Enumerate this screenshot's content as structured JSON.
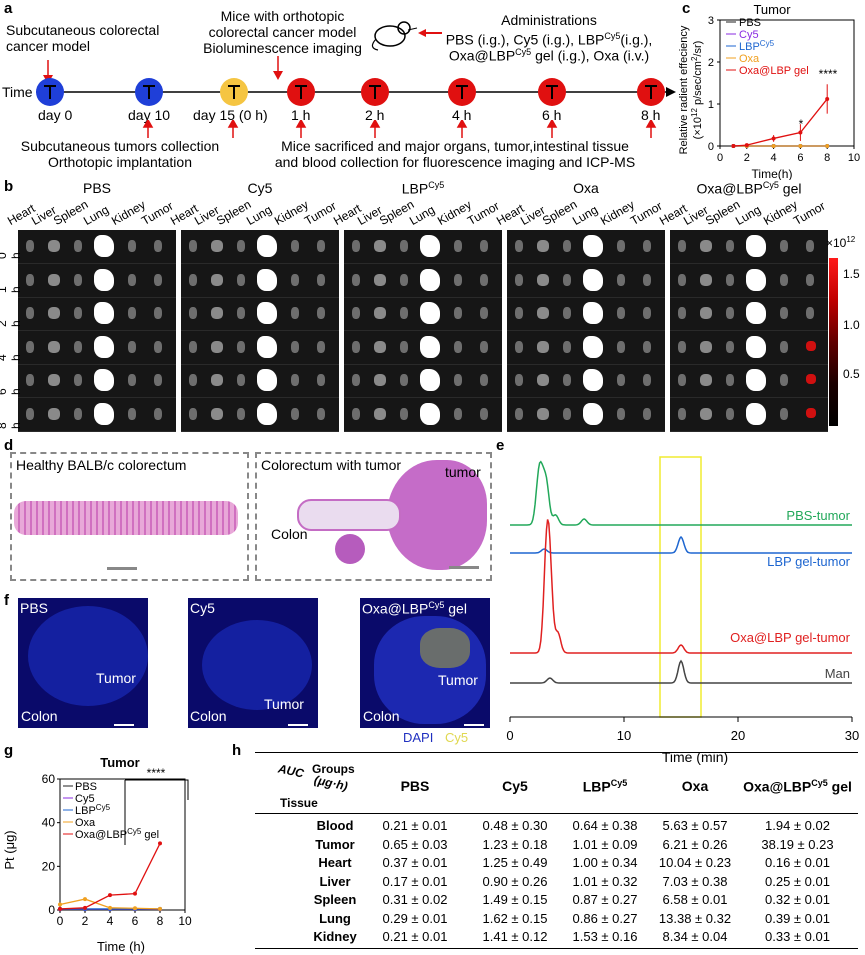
{
  "panel_a": {
    "label": "a",
    "subcutaneous_model": "Subcutaneous colorectal\ncancer model",
    "orthotopic_header": "Mice with orthotopic\ncolorectal cancer model\nBioluminescence imaging",
    "administrations_title": "Administrations",
    "administrations_line1": "PBS (i.g.), Cy5 (i.g.), LBP",
    "administrations_line1_sup": "Cy5",
    "administrations_line1_end": "(i.g.),",
    "administrations_line2": "Oxa@LBP",
    "administrations_line2_sup": "Cy5",
    "administrations_line2_end": " gel (i.g.), Oxa (i.v.)",
    "time_label": "Time",
    "timepoints": [
      "day 0",
      "day 10",
      "day 15 (0 h)",
      "1 h",
      "2 h",
      "4 h",
      "6 h",
      "8 h"
    ],
    "dot_colors": [
      "#1f3fd8",
      "#1f3fd8",
      "#f5c542",
      "#e01010",
      "#e01010",
      "#e01010",
      "#e01010",
      "#e01010"
    ],
    "collection_note": "Subcutaneous tumors collection\nOrthotopic implantation",
    "sacrifice_note": "Mice sacrificed and major organs, tumor,intestinal tissue\nand blood collection for fluorescence imaging and ICP-MS"
  },
  "panel_c": {
    "label": "c",
    "chart_data": {
      "type": "line",
      "title": "Tumor",
      "xlabel": "Time(h)",
      "ylabel": "Relative radient effeciency",
      "ylabel_unit": "(×10",
      "ylabel_unit_sup": "12",
      "ylabel_unit_end": " p/sec/cm",
      "ylabel_unit_end_sup": "2",
      "ylabel_unit_tail": "/sr)",
      "xlim": [
        0,
        10
      ],
      "ylim": [
        0,
        3
      ],
      "xticks": [
        "0",
        "2",
        "4",
        "6",
        "8",
        "10"
      ],
      "yticks": [
        "0",
        "1",
        "2",
        "3"
      ],
      "x": [
        1,
        2,
        4,
        6,
        8
      ],
      "series": [
        {
          "name": "PBS",
          "color": "#222222",
          "values": [
            0.0,
            0.0,
            0.0,
            0.0,
            0.0
          ]
        },
        {
          "name": "Cy5",
          "color": "#8a2be2",
          "values": [
            0.0,
            0.0,
            0.0,
            0.0,
            0.0
          ]
        },
        {
          "name": "LBP",
          "sup": "Cy5",
          "color": "#1e66d0",
          "values": [
            0.0,
            0.0,
            0.0,
            0.0,
            0.0
          ]
        },
        {
          "name": "Oxa",
          "color": "#f0a020",
          "values": [
            0.0,
            0.0,
            0.0,
            0.0,
            0.0
          ]
        },
        {
          "name": "Oxa@LBP gel",
          "color": "#e01010",
          "values": [
            0.0,
            0.02,
            0.18,
            0.32,
            1.12
          ],
          "errors": [
            0.0,
            0.02,
            0.08,
            0.2,
            0.35
          ]
        }
      ],
      "annotations": [
        "*",
        "****"
      ]
    }
  },
  "panel_b": {
    "label": "b",
    "groups": [
      {
        "title": "PBS",
        "sup": ""
      },
      {
        "title": "Cy5",
        "sup": ""
      },
      {
        "title": "LBP",
        "sup": "Cy5"
      },
      {
        "title": "Oxa",
        "sup": ""
      },
      {
        "title": "Oxa@LBP",
        "sup": "Cy5",
        "suffix": " gel"
      }
    ],
    "organs": [
      "Heart",
      "Liver",
      "Spleen",
      "Lung",
      "Kidney",
      "Tumor"
    ],
    "row_labels": [
      "0 h",
      "1 h",
      "2 h",
      "4 h",
      "6 h",
      "8 h"
    ],
    "scale_unit": "×10",
    "scale_unit_sup": "12",
    "scale_ticks": [
      "1.5",
      "1.0",
      "0.5"
    ]
  },
  "panel_d": {
    "label": "d",
    "healthy_title": "Healthy BALB/c colorectum",
    "tumor_title": "Colorectum with tumor",
    "tumor_label": "tumor",
    "colon_label": "Colon"
  },
  "panel_e": {
    "label": "e",
    "chart_data": {
      "type": "line",
      "xlabel": "Time (min)",
      "xlim": [
        0,
        30
      ],
      "xticks": [
        "0",
        "10",
        "20",
        "30"
      ],
      "series": [
        {
          "name": "PBS-tumor",
          "color": "#22a85a"
        },
        {
          "name": "LBP gel-tumor",
          "color": "#1e66d0"
        },
        {
          "name": "Oxa@LBP gel-tumor",
          "color": "#e02020"
        },
        {
          "name": "Man",
          "color": "#444444"
        }
      ],
      "highlight_window_min": [
        13.5,
        17
      ]
    }
  },
  "panel_f": {
    "label": "f",
    "titles": [
      "PBS",
      "Cy5",
      "Oxa@LBP"
    ],
    "third_sup": "Cy5",
    "third_suffix": " gel",
    "tumor_label": "Tumor",
    "colon_label": "Colon",
    "dapi": "DAPI",
    "cy5": "Cy5"
  },
  "panel_g": {
    "label": "g",
    "chart_data": {
      "type": "line",
      "title": "Tumor",
      "xlabel": "Time (h)",
      "ylabel": "Pt (μg)",
      "xlim": [
        0,
        10
      ],
      "ylim": [
        0,
        60
      ],
      "xticks": [
        "0",
        "2",
        "4",
        "6",
        "8",
        "10"
      ],
      "yticks": [
        "0",
        "20",
        "40",
        "60"
      ],
      "x": [
        0,
        2,
        4,
        6,
        8
      ],
      "series": [
        {
          "name": "PBS",
          "color": "#222222",
          "values": [
            0.3,
            0.3,
            0.3,
            0.3,
            0.3
          ]
        },
        {
          "name": "Cy5",
          "color": "#8a2be2",
          "values": [
            0.4,
            0.4,
            0.4,
            0.4,
            0.4
          ]
        },
        {
          "name": "LBP",
          "sup": "Cy5",
          "color": "#1e66d0",
          "values": [
            0.5,
            0.5,
            0.5,
            0.5,
            0.5
          ]
        },
        {
          "name": "Oxa",
          "color": "#f0a020",
          "values": [
            2.5,
            5.0,
            1.0,
            0.8,
            0.5
          ]
        },
        {
          "name": "Oxa@LBP",
          "sup": "Cy5",
          "suffix": " gel",
          "color": "#e01010",
          "values": [
            0.5,
            1.0,
            6.8,
            7.5,
            30.5
          ]
        }
      ],
      "annotations": [
        "****"
      ]
    }
  },
  "panel_h": {
    "label": "h",
    "corner_auc": "AUC",
    "corner_unit": "(μg·h)",
    "corner_groups": "Groups",
    "corner_tissue": "Tissue",
    "columns": [
      "PBS",
      "Cy5",
      "LBP",
      "Oxa",
      "Oxa@LBP"
    ],
    "lbp_sup": "Cy5",
    "last_suffix": " gel",
    "rows": [
      {
        "tissue": "Blood",
        "values": [
          "0.21 ± 0.01",
          "0.48 ± 0.30",
          "0.64 ± 0.38",
          "5.63 ± 0.57",
          "1.94 ± 0.02"
        ]
      },
      {
        "tissue": "Tumor",
        "values": [
          "0.65 ± 0.03",
          "1.23 ± 0.18",
          "1.01 ± 0.09",
          "6.21 ± 0.26",
          "38.19 ± 0.23"
        ]
      },
      {
        "tissue": "Heart",
        "values": [
          "0.37 ± 0.01",
          "1.25 ± 0.49",
          "1.00 ± 0.34",
          "10.04 ± 0.23",
          "0.16 ± 0.01"
        ]
      },
      {
        "tissue": "Liver",
        "values": [
          "0.17 ± 0.01",
          "0.90 ± 0.26",
          "1.01 ± 0.32",
          "7.03 ± 0.38",
          "0.25 ± 0.01"
        ]
      },
      {
        "tissue": "Spleen",
        "values": [
          "0.31 ± 0.02",
          "1.49 ± 0.15",
          "0.87 ± 0.27",
          "6.58 ± 0.01",
          "0.32 ± 0.01"
        ]
      },
      {
        "tissue": "Lung",
        "values": [
          "0.29 ± 0.01",
          "1.62 ± 0.15",
          "0.86 ± 0.27",
          "13.38 ± 0.32",
          "0.39 ± 0.01"
        ]
      },
      {
        "tissue": "Kidney",
        "values": [
          "0.21 ± 0.01",
          "1.41 ± 0.12",
          "1.53 ± 0.16",
          "8.34 ± 0.04",
          "0.33 ± 0.01"
        ]
      }
    ]
  }
}
